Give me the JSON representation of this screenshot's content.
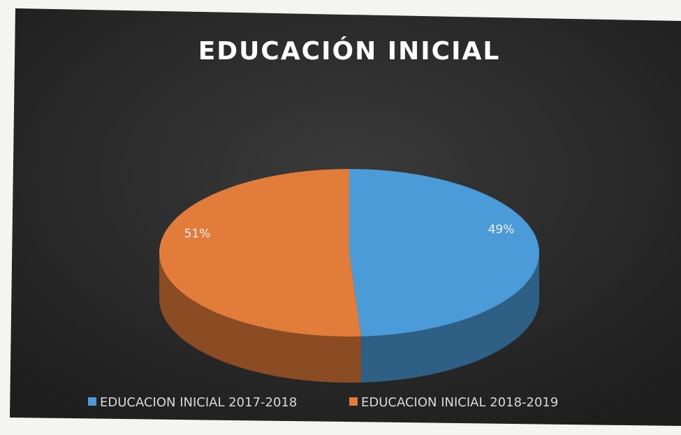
{
  "chart_data": {
    "type": "pie3d",
    "title": "EDUCACIÓN INICIAL",
    "categories": [
      "EDUCACION INICIAL 2017-2018",
      "EDUCACION INICIAL 2018-2019"
    ],
    "values": [
      49,
      51
    ],
    "value_labels": [
      "49%",
      "51%"
    ],
    "colors": [
      "#4b9bd9",
      "#e27c3a"
    ],
    "legend": "bottom"
  }
}
